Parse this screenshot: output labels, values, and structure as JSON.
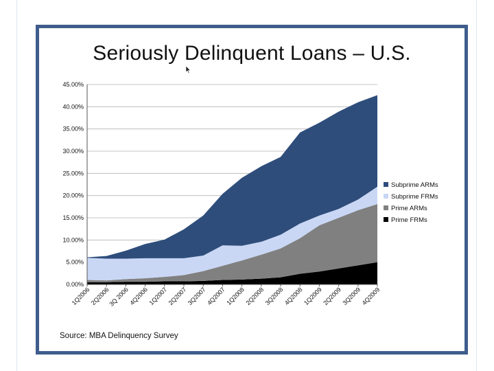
{
  "slide": {
    "title": "Seriously Delinquent Loans – U.S.",
    "source": "Source: MBA Delinquency Survey"
  },
  "chart_data": {
    "type": "area",
    "stacked": true,
    "title": "Seriously Delinquent Loans – U.S.",
    "xlabel": "",
    "ylabel": "",
    "ylim": [
      0,
      45
    ],
    "y_ticks": [
      0,
      5,
      10,
      15,
      20,
      25,
      30,
      35,
      40,
      45
    ],
    "y_tick_labels": [
      "0.00%",
      "5.00%",
      "10.00%",
      "15.00%",
      "20.00%",
      "25.00%",
      "30.00%",
      "35.00%",
      "40.00%",
      "45.00%"
    ],
    "categories": [
      "1Q2006",
      "2Q2006",
      "3Q 2006",
      "4Q2006",
      "1Q2007",
      "2Q2007",
      "3Q2007",
      "4Q2007",
      "1Q2008",
      "2Q2008",
      "3Q2008",
      "4Q2008",
      "1Q2009",
      "2Q2009",
      "3Q2009",
      "4Q2009"
    ],
    "grid": true,
    "legend_position": "right",
    "series": [
      {
        "name": "Prime FRMs",
        "color": "#000000",
        "values": [
          0.5,
          0.5,
          0.6,
          0.6,
          0.7,
          0.7,
          0.8,
          1.0,
          1.1,
          1.3,
          1.6,
          2.4,
          2.9,
          3.6,
          4.3,
          5.0
        ]
      },
      {
        "name": "Prime ARMs",
        "color": "#808080",
        "values": [
          0.5,
          0.4,
          0.6,
          0.8,
          1.0,
          1.4,
          2.2,
          3.2,
          4.3,
          5.4,
          6.5,
          8.0,
          10.4,
          11.4,
          12.4,
          13.1
        ]
      },
      {
        "name": "Subprime FRMs",
        "color": "#c9d7f5",
        "values": [
          5.0,
          4.9,
          4.6,
          4.5,
          4.2,
          3.8,
          3.5,
          4.6,
          3.3,
          2.9,
          3.1,
          3.3,
          2.2,
          2.0,
          2.4,
          3.9
        ]
      },
      {
        "name": "Subprime ARMs",
        "color": "#2e4d7b",
        "values": [
          0.1,
          0.6,
          1.8,
          3.2,
          4.2,
          6.5,
          9.0,
          11.6,
          15.3,
          17.0,
          17.5,
          20.5,
          20.9,
          21.9,
          21.9,
          20.6
        ]
      }
    ]
  }
}
